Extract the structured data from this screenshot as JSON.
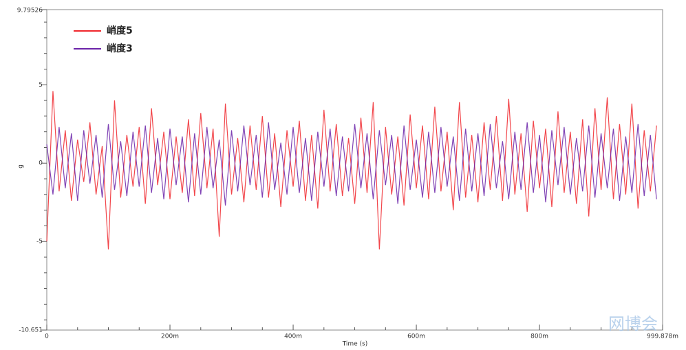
{
  "chart_data": {
    "type": "line",
    "xlabel": "Time (s)",
    "ylabel": "g",
    "watermark": "网博会",
    "x": [
      0,
      0.01,
      0.02,
      0.03,
      0.04,
      0.05,
      0.06,
      0.07,
      0.08,
      0.09,
      0.1,
      0.11,
      0.12,
      0.13,
      0.14,
      0.15,
      0.16,
      0.17,
      0.18,
      0.19,
      0.2,
      0.21,
      0.22,
      0.23,
      0.24,
      0.25,
      0.26,
      0.27,
      0.28,
      0.29,
      0.3,
      0.31,
      0.32,
      0.33,
      0.34,
      0.35,
      0.36,
      0.37,
      0.38,
      0.39,
      0.4,
      0.41,
      0.42,
      0.43,
      0.44,
      0.45,
      0.46,
      0.47,
      0.48,
      0.49,
      0.5,
      0.51,
      0.52,
      0.53,
      0.54,
      0.55,
      0.56,
      0.57,
      0.58,
      0.59,
      0.6,
      0.61,
      0.62,
      0.63,
      0.64,
      0.65,
      0.66,
      0.67,
      0.68,
      0.69,
      0.7,
      0.71,
      0.72,
      0.73,
      0.74,
      0.75,
      0.76,
      0.77,
      0.78,
      0.79,
      0.8,
      0.81,
      0.82,
      0.83,
      0.84,
      0.85,
      0.86,
      0.87,
      0.88,
      0.89,
      0.9,
      0.91,
      0.92,
      0.93,
      0.94,
      0.95,
      0.96,
      0.97,
      0.98,
      0.99
    ],
    "series": [
      {
        "name": "峭度5",
        "color": "#f0262b",
        "values": [
          -5.0,
          4.6,
          -1.8,
          2.1,
          -2.4,
          1.5,
          -1.2,
          2.6,
          -2.0,
          1.1,
          -5.5,
          4.0,
          -2.2,
          1.8,
          -1.5,
          2.3,
          -2.6,
          3.5,
          -1.4,
          2.0,
          -2.3,
          1.7,
          -1.9,
          2.8,
          -2.1,
          3.2,
          -1.6,
          2.2,
          -4.7,
          3.8,
          -2.0,
          1.6,
          -2.5,
          2.4,
          -1.7,
          3.0,
          -2.2,
          1.9,
          -2.8,
          2.1,
          -1.5,
          2.7,
          -2.4,
          1.8,
          -2.9,
          3.4,
          -1.8,
          2.5,
          -2.1,
          1.6,
          -2.6,
          2.9,
          -1.9,
          3.9,
          -5.5,
          2.3,
          -2.0,
          1.7,
          -2.7,
          3.1,
          -1.6,
          2.4,
          -2.3,
          3.6,
          -1.8,
          2.0,
          -3.0,
          3.9,
          -2.2,
          1.8,
          -2.5,
          2.6,
          -1.7,
          3.0,
          -2.4,
          4.1,
          -2.0,
          1.9,
          -3.1,
          2.7,
          -1.6,
          2.2,
          -2.8,
          3.3,
          -1.9,
          2.0,
          -2.6,
          2.8,
          -3.4,
          3.5,
          -1.7,
          4.2,
          -2.3,
          2.5,
          -2.0,
          3.8,
          -2.9,
          2.1,
          -1.8,
          2.4
        ]
      },
      {
        "name": "峭度3",
        "color": "#6a22a8",
        "values": [
          1.2,
          -2.0,
          2.3,
          -1.6,
          1.9,
          -2.4,
          2.1,
          -1.3,
          1.8,
          -2.2,
          2.5,
          -1.7,
          1.4,
          -2.1,
          2.0,
          -1.5,
          2.4,
          -1.9,
          1.6,
          -2.3,
          2.2,
          -1.4,
          1.7,
          -2.5,
          1.9,
          -2.0,
          2.3,
          -1.6,
          1.5,
          -2.7,
          2.1,
          -1.8,
          2.4,
          -1.4,
          1.8,
          -2.2,
          2.6,
          -1.7,
          1.3,
          -2.0,
          2.3,
          -1.9,
          1.6,
          -2.4,
          2.0,
          -1.5,
          2.2,
          -2.1,
          1.7,
          -1.8,
          2.5,
          -1.6,
          1.9,
          -2.3,
          2.1,
          -1.4,
          1.8,
          -2.6,
          2.4,
          -1.7,
          1.5,
          -2.2,
          2.0,
          -1.9,
          2.3,
          -1.5,
          1.7,
          -2.4,
          2.2,
          -1.8,
          1.9,
          -2.1,
          2.5,
          -1.6,
          1.4,
          -2.3,
          2.0,
          -1.7,
          2.6,
          -1.9,
          1.8,
          -2.5,
          2.1,
          -1.4,
          2.3,
          -2.0,
          1.6,
          -1.8,
          2.4,
          -2.2,
          1.9,
          -1.6,
          2.2,
          -2.4,
          1.7,
          -1.9,
          2.5,
          -2.1,
          1.8,
          -2.3
        ]
      }
    ],
    "xlim": [
      0,
      0.999878
    ],
    "xticks": [
      0,
      {
        "value": 0.2,
        "label": "200m"
      },
      {
        "value": 0.4,
        "label": "400m"
      },
      {
        "value": 0.6,
        "label": "600m"
      },
      {
        "value": 0.8,
        "label": "800m"
      },
      {
        "value": 0.999878,
        "label": "999.878m"
      }
    ],
    "xminorticks": [
      0.05,
      0.1,
      0.15,
      0.25,
      0.3,
      0.35,
      0.45,
      0.5,
      0.55,
      0.65,
      0.7,
      0.75,
      0.85,
      0.9,
      0.95
    ],
    "ylim": [
      -10.651,
      9.79526
    ],
    "yticks": [
      -10.651,
      -5,
      0,
      5,
      9.79526
    ],
    "yminorticks": [
      -10,
      -9,
      -8,
      -7,
      -6,
      -4,
      -3,
      -2,
      -1,
      1,
      2,
      3,
      4,
      6,
      7,
      8,
      9
    ],
    "legend": "upper left"
  }
}
